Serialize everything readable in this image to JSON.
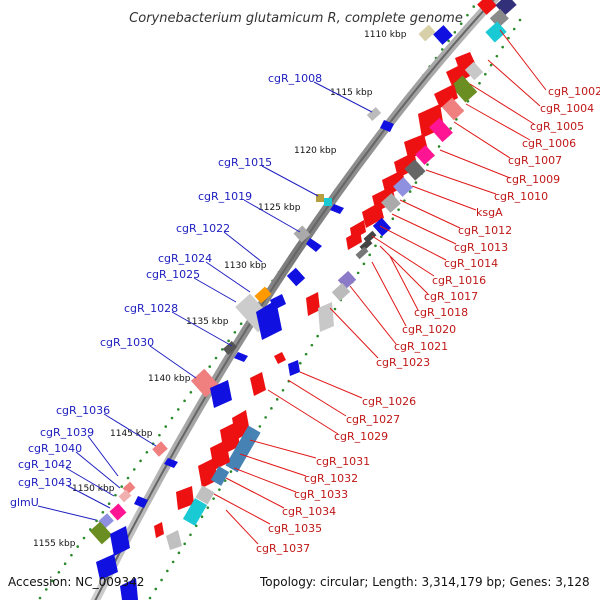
{
  "title": "Corynebacterium glutamicum R, complete genome",
  "footer": {
    "accession": "Accession: NC_009342",
    "summary": "Topology: circular; Length: 3,314,179 bp; Genes: 3,128"
  },
  "scale_labels": [
    "1110 kbp",
    "1115 kbp",
    "1120 kbp",
    "1125 kbp",
    "1130 kbp",
    "1135 kbp",
    "1140 kbp",
    "1145 kbp",
    "1150 kbp",
    "1155 kbp"
  ],
  "left_genes": [
    "cgR_1008",
    "cgR_1015",
    "cgR_1019",
    "cgR_1022",
    "cgR_1024",
    "cgR_1025",
    "cgR_1028",
    "cgR_1030",
    "cgR_1036",
    "cgR_1039",
    "cgR_1040",
    "cgR_1042",
    "cgR_1043",
    "glmU"
  ],
  "right_genes": [
    "cgR_1002",
    "cgR_1004",
    "cgR_1005",
    "cgR_1006",
    "cgR_1007",
    "cgR_1009",
    "cgR_1010",
    "ksgA",
    "cgR_1012",
    "cgR_1013",
    "cgR_1014",
    "cgR_1016",
    "cgR_1017",
    "cgR_1018",
    "cgR_1020",
    "cgR_1021",
    "cgR_1023",
    "cgR_1026",
    "cgR_1027",
    "cgR_1029",
    "cgR_1031",
    "cgR_1032",
    "cgR_1033",
    "cgR_1034",
    "cgR_1035",
    "cgR_1037"
  ],
  "colors": {
    "backbone": "#888888",
    "forward_strand": "#1010e0",
    "reverse_strand": "#ee1111",
    "tick_dots": "#2a8a2a",
    "left_label": "#2020c0",
    "right_label": "#c01818"
  }
}
